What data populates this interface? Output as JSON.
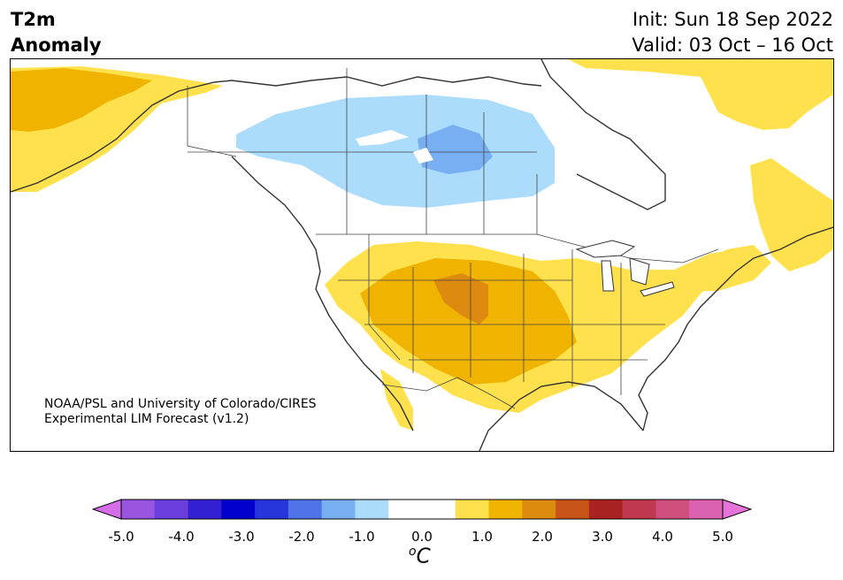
{
  "header": {
    "variable": "T2m",
    "field": "Anomaly",
    "init": "Init: Sun 18 Sep 2022",
    "valid": "Valid: 03 Oct – 16 Oct"
  },
  "credit": {
    "line1": "NOAA/PSL and University of Colorado/CIRES",
    "line2": "Experimental LIM Forecast (v1.2)"
  },
  "colorbar": {
    "unit_main": "C",
    "unit_sup": "o",
    "ticks": [
      "-5.0",
      "-4.0",
      "-3.0",
      "-2.0",
      "-1.0",
      "0.0",
      "1.0",
      "2.0",
      "3.0",
      "4.0",
      "5.0"
    ],
    "colors": [
      "#d56ce8",
      "#9a55e0",
      "#6b3ddb",
      "#3320d2",
      "#0000cc",
      "#2636dc",
      "#4e74e8",
      "#78aef2",
      "#abdcfb",
      "#ffffff",
      "#ffffff",
      "#ffe14d",
      "#f0b400",
      "#dc8a10",
      "#c85418",
      "#aa2222",
      "#c03850",
      "#cf4f7e",
      "#da62b0",
      "#e674d8"
    ]
  },
  "map": {
    "anomaly_regions": [
      {
        "name": "cool-anomaly-central-canada",
        "level": "-1.0 to -0.5",
        "color": "#abdcfb"
      },
      {
        "name": "cool-anomaly-core",
        "level": "-1.5 to -1.0",
        "color": "#78aef2"
      },
      {
        "name": "warm-anomaly-western-us",
        "level": "0.5 to 1.0",
        "color": "#ffe14d"
      },
      {
        "name": "warm-anomaly-core",
        "level": "1.0 to 1.5",
        "color": "#f0b400"
      },
      {
        "name": "warm-anomaly-peak",
        "level": "1.5 to 2.0",
        "color": "#dc8a10"
      },
      {
        "name": "warm-anomaly-alaska",
        "level": "0.5 to 1.5",
        "color": "#f0b400"
      },
      {
        "name": "warm-anomaly-northeast-canada",
        "level": "0.5 to 1.0",
        "color": "#ffe14d"
      }
    ]
  }
}
